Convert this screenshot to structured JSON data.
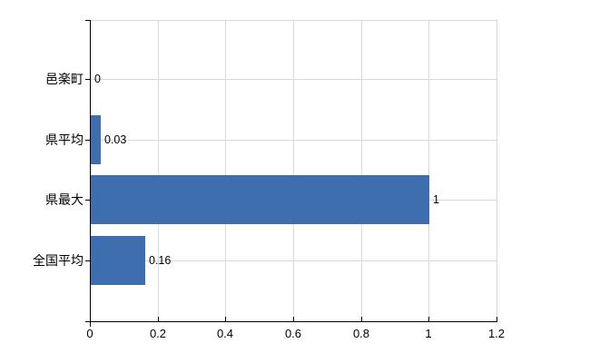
{
  "chart_data": {
    "type": "bar",
    "orientation": "horizontal",
    "title": "",
    "xlabel": "",
    "ylabel": "",
    "categories": [
      "邑楽町",
      "県平均",
      "県最大",
      "全国平均"
    ],
    "values": [
      0,
      0.03,
      1,
      0.16
    ],
    "data_labels": [
      "0",
      "0.03",
      "1",
      "0.16"
    ],
    "x_ticks": [
      0,
      0.2,
      0.4,
      0.6,
      0.8,
      1,
      1.2
    ],
    "x_tick_labels": [
      "0",
      "0.2",
      "0.4",
      "0.6",
      "0.8",
      "1",
      "1.2"
    ],
    "xlim": [
      0,
      1.2
    ],
    "grid": true,
    "legend": "none",
    "bar_color": "#3e6eae",
    "gridline_color": "#d8d8d8",
    "axis_color": "#000000",
    "text_color": "#000000",
    "background_color": "#ffffff"
  }
}
